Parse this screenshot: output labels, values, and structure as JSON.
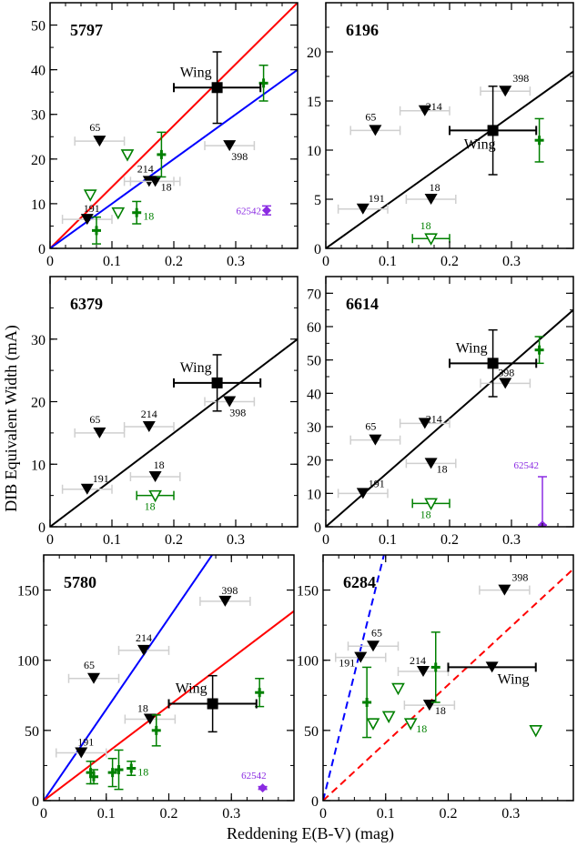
{
  "figure": {
    "ylabel": "DIB Equivalent Width (mA)",
    "xlabel": "Reddening  E(B-V) (mag)"
  },
  "chart_data": [
    {
      "type": "scatter",
      "title": "5797",
      "xlim": [
        0,
        0.4
      ],
      "ylim": [
        0,
        55
      ],
      "xticks": [
        "0",
        "0.1",
        "0.2",
        "0.3"
      ],
      "yticks": [
        "0",
        "10",
        "20",
        "30",
        "40",
        "50"
      ],
      "series": [
        {
          "kind": "filled_triangle",
          "color": "#000000",
          "points": [
            {
              "label": "65",
              "x": 0.08,
              "y": 24,
              "xerr": 0.04
            },
            {
              "label": "214",
              "x": 0.16,
              "y": 15,
              "xerr": 0.04
            },
            {
              "label": "18",
              "x": 0.17,
              "y": 15,
              "xerr": 0.04
            },
            {
              "label": "191",
              "x": 0.06,
              "y": 6.5,
              "xerr": 0.04
            },
            {
              "label": "398",
              "x": 0.29,
              "y": 23,
              "xerr": 0.04
            }
          ]
        },
        {
          "kind": "open_triangle",
          "color": "#008000",
          "points": [
            {
              "label": "",
              "x": 0.065,
              "y": 12
            },
            {
              "label": "",
              "x": 0.11,
              "y": 8
            },
            {
              "label": "",
              "x": 0.125,
              "y": 21
            }
          ]
        },
        {
          "kind": "cross",
          "color": "#008000",
          "points": [
            {
              "label": "",
              "x": 0.075,
              "y": 4,
              "yerr": 3
            },
            {
              "label": "18",
              "x": 0.14,
              "y": 8,
              "yerr": 2.5
            },
            {
              "label": "",
              "x": 0.18,
              "y": 21,
              "yerr": 5
            },
            {
              "label": "",
              "x": 0.345,
              "y": 37,
              "yerr": 4
            }
          ]
        },
        {
          "kind": "diamond",
          "color": "#8a2be2",
          "points": [
            {
              "label": "62542",
              "x": 0.35,
              "y": 8.5,
              "yerr": 1
            }
          ]
        },
        {
          "kind": "square",
          "color": "#000000",
          "points": [
            {
              "label": "Wing",
              "x": 0.27,
              "y": 36,
              "xerr": 0.07,
              "yerr": 8
            }
          ]
        }
      ],
      "lines": [
        {
          "color": "#ff0000",
          "slope": 137.5,
          "style": "solid"
        },
        {
          "color": "#0000ff",
          "slope": 100,
          "style": "solid"
        }
      ]
    },
    {
      "type": "scatter",
      "title": "6196",
      "xlim": [
        0,
        0.4
      ],
      "ylim": [
        0,
        25
      ],
      "xticks": [
        "0",
        "0.1",
        "0.2",
        "0.3"
      ],
      "yticks": [
        "0",
        "5",
        "10",
        "15",
        "20"
      ],
      "series": [
        {
          "kind": "filled_triangle",
          "color": "#000000",
          "points": [
            {
              "label": "65",
              "x": 0.08,
              "y": 12,
              "xerr": 0.04
            },
            {
              "label": "214",
              "x": 0.16,
              "y": 14,
              "xerr": 0.04
            },
            {
              "label": "398",
              "x": 0.29,
              "y": 16,
              "xerr": 0.04
            },
            {
              "label": "191",
              "x": 0.06,
              "y": 4,
              "xerr": 0.04
            },
            {
              "label": "18",
              "x": 0.17,
              "y": 5,
              "xerr": 0.04
            }
          ]
        },
        {
          "kind": "open_triangle",
          "color": "#008000",
          "points": [
            {
              "label": "18",
              "x": 0.17,
              "y": 1,
              "xerr": 0.03
            }
          ]
        },
        {
          "kind": "cross",
          "color": "#008000",
          "points": [
            {
              "label": "",
              "x": 0.345,
              "y": 11,
              "yerr": 2.2
            }
          ]
        },
        {
          "kind": "square",
          "color": "#000000",
          "points": [
            {
              "label": "Wing",
              "x": 0.27,
              "y": 12,
              "xerr": 0.07,
              "yerr": 4.5
            }
          ]
        }
      ],
      "lines": [
        {
          "color": "#000000",
          "slope": 45,
          "style": "solid"
        }
      ]
    },
    {
      "type": "scatter",
      "title": "6379",
      "xlim": [
        0,
        0.4
      ],
      "ylim": [
        0,
        40
      ],
      "xticks": [
        "0",
        "0.1",
        "0.2",
        "0.3"
      ],
      "yticks": [
        "0",
        "10",
        "20",
        "30"
      ],
      "series": [
        {
          "kind": "filled_triangle",
          "color": "#000000",
          "points": [
            {
              "label": "65",
              "x": 0.08,
              "y": 15,
              "xerr": 0.04
            },
            {
              "label": "214",
              "x": 0.16,
              "y": 16,
              "xerr": 0.04
            },
            {
              "label": "398",
              "x": 0.29,
              "y": 20,
              "xerr": 0.04
            },
            {
              "label": "191",
              "x": 0.06,
              "y": 6,
              "xerr": 0.04
            },
            {
              "label": "18",
              "x": 0.17,
              "y": 8,
              "xerr": 0.04
            }
          ]
        },
        {
          "kind": "open_triangle",
          "color": "#008000",
          "points": [
            {
              "label": "18",
              "x": 0.17,
              "y": 5,
              "xerr": 0.03
            }
          ]
        },
        {
          "kind": "square",
          "color": "#000000",
          "points": [
            {
              "label": "Wing",
              "x": 0.27,
              "y": 23,
              "xerr": 0.07,
              "yerr": 4.5
            }
          ]
        }
      ],
      "lines": [
        {
          "color": "#000000",
          "slope": 75,
          "style": "solid"
        }
      ]
    },
    {
      "type": "scatter",
      "title": "6614",
      "xlim": [
        0,
        0.4
      ],
      "ylim": [
        0,
        75
      ],
      "xticks": [
        "0",
        "0.1",
        "0.2",
        "0.3"
      ],
      "yticks": [
        "0",
        "10",
        "20",
        "30",
        "40",
        "50",
        "60",
        "70"
      ],
      "series": [
        {
          "kind": "filled_triangle",
          "color": "#000000",
          "points": [
            {
              "label": "65",
              "x": 0.08,
              "y": 26,
              "xerr": 0.04
            },
            {
              "label": "214",
              "x": 0.16,
              "y": 31,
              "xerr": 0.04
            },
            {
              "label": "398",
              "x": 0.29,
              "y": 43,
              "xerr": 0.04
            },
            {
              "label": "191",
              "x": 0.06,
              "y": 10,
              "xerr": 0.04
            },
            {
              "label": "18",
              "x": 0.17,
              "y": 19,
              "xerr": 0.04
            }
          ]
        },
        {
          "kind": "open_triangle",
          "color": "#008000",
          "points": [
            {
              "label": "18",
              "x": 0.17,
              "y": 7,
              "xerr": 0.03
            }
          ]
        },
        {
          "kind": "cross",
          "color": "#008000",
          "points": [
            {
              "label": "",
              "x": 0.345,
              "y": 53,
              "yerr": 4
            }
          ]
        },
        {
          "kind": "diamond",
          "color": "#8a2be2",
          "points": [
            {
              "label": "62542",
              "x": 0.35,
              "y": 0.5,
              "yerr_high": 15
            }
          ]
        },
        {
          "kind": "square",
          "color": "#000000",
          "points": [
            {
              "label": "Wing",
              "x": 0.27,
              "y": 49,
              "xerr": 0.07,
              "yerr": 10
            }
          ]
        }
      ],
      "lines": [
        {
          "color": "#000000",
          "slope": 162.5,
          "style": "solid"
        }
      ]
    },
    {
      "type": "scatter",
      "title": "5780",
      "xlim": [
        0,
        0.4
      ],
      "ylim": [
        0,
        175
      ],
      "xticks": [
        "0",
        "0.1",
        "0.2",
        "0.3"
      ],
      "yticks": [
        "0",
        "50",
        "100",
        "150"
      ],
      "series": [
        {
          "kind": "filled_triangle",
          "color": "#000000",
          "points": [
            {
              "label": "65",
              "x": 0.08,
              "y": 87,
              "xerr": 0.04
            },
            {
              "label": "214",
              "x": 0.16,
              "y": 107,
              "xerr": 0.04
            },
            {
              "label": "398",
              "x": 0.29,
              "y": 142,
              "xerr": 0.04
            },
            {
              "label": "191",
              "x": 0.06,
              "y": 34,
              "xerr": 0.04
            },
            {
              "label": "18",
              "x": 0.17,
              "y": 58,
              "xerr": 0.04
            }
          ]
        },
        {
          "kind": "cross",
          "color": "#008000",
          "points": [
            {
              "label": "",
              "x": 0.075,
              "y": 20,
              "yerr": 8
            },
            {
              "label": "",
              "x": 0.08,
              "y": 17,
              "yerr": 5
            },
            {
              "label": "",
              "x": 0.11,
              "y": 20,
              "yerr": 10
            },
            {
              "label": "",
              "x": 0.12,
              "y": 22,
              "yerr": 14
            },
            {
              "label": "18",
              "x": 0.14,
              "y": 23,
              "yerr": 5
            },
            {
              "label": "",
              "x": 0.18,
              "y": 50,
              "yerr": 11
            },
            {
              "label": "",
              "x": 0.345,
              "y": 77,
              "yerr": 10
            }
          ]
        },
        {
          "kind": "diamond",
          "color": "#8a2be2",
          "points": [
            {
              "label": "62542",
              "x": 0.35,
              "y": 9,
              "yerr": 1
            }
          ]
        },
        {
          "kind": "square",
          "color": "#000000",
          "points": [
            {
              "label": "Wing",
              "x": 0.27,
              "y": 69,
              "xerr": 0.07,
              "yerr": 20
            }
          ]
        }
      ],
      "lines": [
        {
          "color": "#0000ff",
          "slope": 650,
          "style": "solid"
        },
        {
          "color": "#ff0000",
          "slope": 337.5,
          "style": "solid"
        }
      ]
    },
    {
      "type": "scatter",
      "title": "6284",
      "xlim": [
        0,
        0.4
      ],
      "ylim": [
        0,
        175
      ],
      "xticks": [
        "0",
        "0.1",
        "0.2",
        "0.3"
      ],
      "yticks": [
        "0",
        "50",
        "100",
        "150"
      ],
      "series": [
        {
          "kind": "filled_triangle",
          "color": "#000000",
          "points": [
            {
              "label": "65",
              "x": 0.08,
              "y": 110,
              "xerr": 0.04
            },
            {
              "label": "214",
              "x": 0.16,
              "y": 92,
              "xerr": 0.04
            },
            {
              "label": "398",
              "x": 0.29,
              "y": 150,
              "xerr": 0.04
            },
            {
              "label": "191",
              "x": 0.06,
              "y": 102,
              "xerr": 0.04
            },
            {
              "label": "18",
              "x": 0.17,
              "y": 68,
              "xerr": 0.04
            }
          ]
        },
        {
          "kind": "open_triangle",
          "color": "#008000",
          "points": [
            {
              "label": "",
              "x": 0.08,
              "y": 55
            },
            {
              "label": "",
              "x": 0.105,
              "y": 60
            },
            {
              "label": "",
              "x": 0.12,
              "y": 80
            },
            {
              "label": "18",
              "x": 0.14,
              "y": 55
            },
            {
              "label": "",
              "x": 0.34,
              "y": 50
            }
          ]
        },
        {
          "kind": "cross",
          "color": "#008000",
          "points": [
            {
              "label": "",
              "x": 0.07,
              "y": 70,
              "yerr": 25
            },
            {
              "label": "",
              "x": 0.18,
              "y": 95,
              "yerr": 25
            }
          ]
        },
        {
          "kind": "filled_triangle_plain",
          "color": "#000000",
          "points": [
            {
              "label": "Wing",
              "x": 0.27,
              "y": 95,
              "xerr": 0.07
            }
          ]
        }
      ],
      "lines": [
        {
          "color": "#0000ff",
          "slope": 1800,
          "style": "dashed"
        },
        {
          "color": "#ff0000",
          "slope": 412.5,
          "style": "dashed"
        }
      ]
    }
  ]
}
